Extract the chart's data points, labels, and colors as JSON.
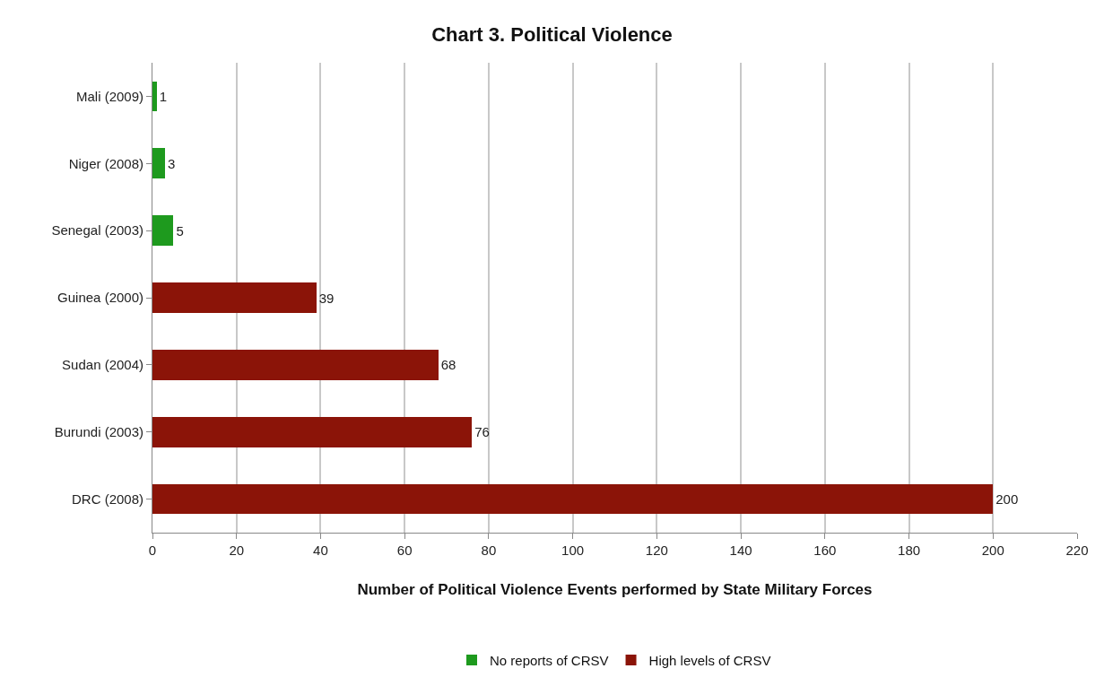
{
  "chart_data": {
    "type": "bar",
    "orientation": "horizontal",
    "stacked": true,
    "title": "Chart 3. Political Violence",
    "xlabel": "Number of Political Violence Events performed by State Military Forces",
    "categories": [
      "Mali (2009)",
      "Niger (2008)",
      "Senegal (2003)",
      "Guinea (2000)",
      "Sudan (2004)",
      "Burundi (2003)",
      "DRC (2008)"
    ],
    "series": [
      {
        "name": "High levels of CRSV",
        "color": "#8b1408",
        "values": [
          null,
          null,
          null,
          39,
          68,
          76,
          200
        ]
      },
      {
        "name": "No reports of CRSV",
        "color": "#1e9a1e",
        "values": [
          1,
          3,
          5,
          null,
          null,
          null,
          null
        ]
      }
    ],
    "xlim": [
      0,
      220
    ],
    "xticks": [
      0,
      20,
      40,
      60,
      80,
      100,
      120,
      140,
      160,
      180,
      200,
      220
    ],
    "grid": "x",
    "legend": "bottom",
    "data_labels": true
  }
}
